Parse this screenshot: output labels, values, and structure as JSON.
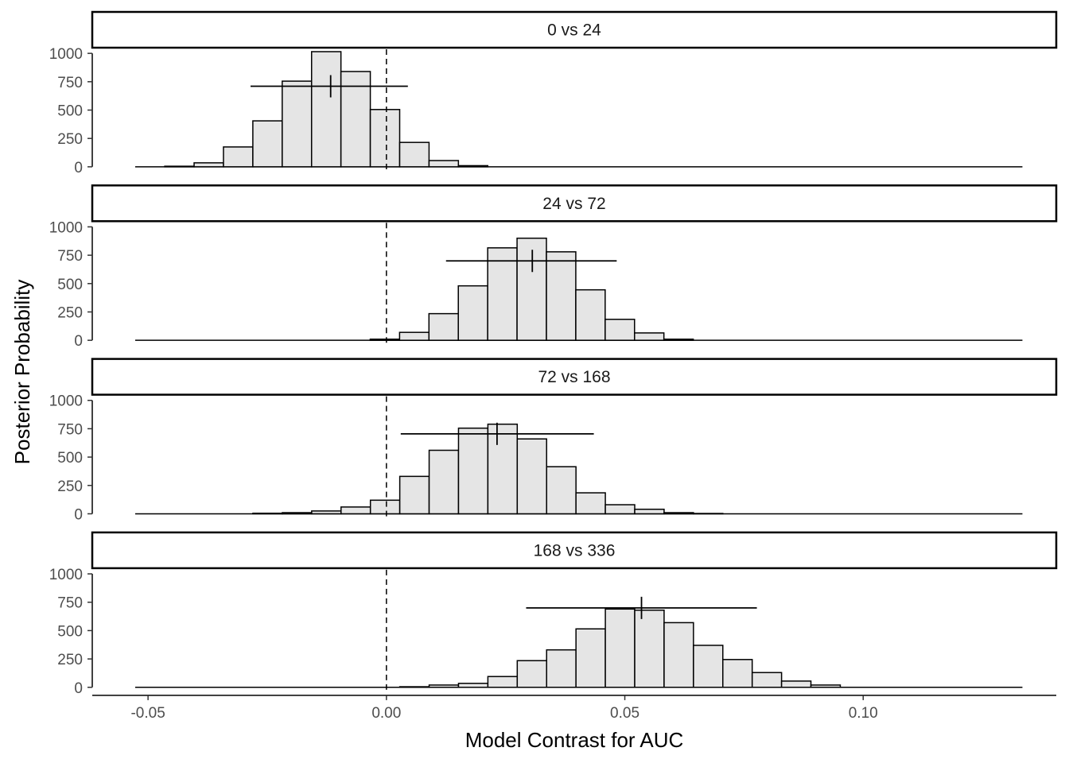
{
  "chart_data": {
    "type": "histogram",
    "xlabel": "Model Contrast for AUC",
    "ylabel": "Posterior Probability",
    "xlim": [
      -0.0617,
      0.1405
    ],
    "ylim": [
      -50,
      1050
    ],
    "x_ticks": [
      {
        "value": -0.05,
        "label": "-0.05"
      },
      {
        "value": 0.0,
        "label": "0.00"
      },
      {
        "value": 0.05,
        "label": "0.05"
      },
      {
        "value": 0.1,
        "label": "0.10"
      }
    ],
    "y_ticks": [
      {
        "value": 0,
        "label": "0"
      },
      {
        "value": 250,
        "label": "250"
      },
      {
        "value": 500,
        "label": "500"
      },
      {
        "value": 750,
        "label": "750"
      },
      {
        "value": 1000,
        "label": "1000"
      }
    ],
    "bin_width": 0.00616,
    "baseline_range": [
      -0.0527,
      0.1334
    ],
    "reference_line_x": 0.0,
    "panels": [
      {
        "label": "0 vs 24",
        "bins_start": -0.0465,
        "counts": [
          5,
          35,
          175,
          405,
          755,
          1015,
          840,
          505,
          215,
          55,
          10
        ],
        "interval": [
          -0.0285,
          0.0045
        ],
        "estimate": -0.0117,
        "interval_y": 710
      },
      {
        "label": "24 vs 72",
        "bins_start": -0.0034,
        "counts": [
          10,
          70,
          235,
          480,
          815,
          900,
          780,
          445,
          185,
          65,
          10
        ],
        "interval": [
          0.0125,
          0.0483
        ],
        "estimate": 0.0306,
        "interval_y": 700
      },
      {
        "label": "72 vs 168",
        "bins_start": -0.028,
        "counts": [
          5,
          10,
          25,
          60,
          120,
          330,
          560,
          755,
          790,
          660,
          415,
          185,
          80,
          40,
          10,
          3
        ],
        "interval": [
          0.003,
          0.0435
        ],
        "estimate": 0.0232,
        "interval_y": 705
      },
      {
        "label": "168 vs 336",
        "bins_start": 0.0028,
        "counts": [
          5,
          20,
          35,
          95,
          235,
          330,
          515,
          690,
          680,
          570,
          370,
          245,
          130,
          55,
          20
        ],
        "interval": [
          0.0293,
          0.0777
        ],
        "estimate": 0.0535,
        "interval_y": 700
      }
    ]
  }
}
